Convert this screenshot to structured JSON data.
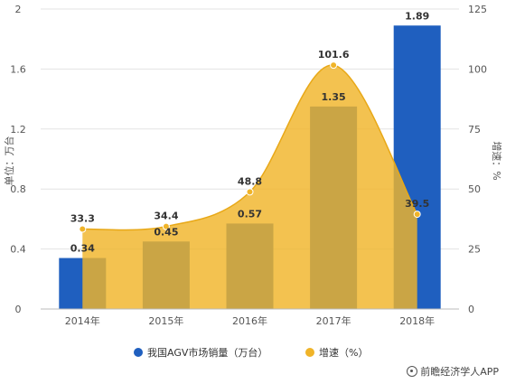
{
  "chart_data": {
    "type": "bar",
    "categories": [
      "2014年",
      "2015年",
      "2016年",
      "2017年",
      "2018年"
    ],
    "series": [
      {
        "name": "我国AGV市场销量（万台）",
        "type": "bar",
        "axis": "left",
        "color": "#1f5fbf",
        "values": [
          0.34,
          0.45,
          0.57,
          1.35,
          1.89
        ]
      },
      {
        "name": "增速（%）",
        "type": "area",
        "axis": "right",
        "color": "#f0b429",
        "values": [
          33.3,
          34.4,
          48.8,
          101.6,
          39.5
        ]
      }
    ],
    "ylabel": "单位：万台",
    "y2label": "增速：%",
    "ylim": [
      0,
      2
    ],
    "y2lim": [
      0,
      125
    ],
    "yticks": [
      "0",
      "0.4",
      "0.8",
      "1.2",
      "1.6",
      "2"
    ],
    "y2ticks": [
      "0",
      "25",
      "50",
      "75",
      "100",
      "125"
    ],
    "bar_labels": [
      "0.34",
      "0.45",
      "0.57",
      "1.35",
      "1.89"
    ],
    "rate_labels": [
      "33.3",
      "34.4",
      "48.8",
      "101.6",
      "39.5"
    ],
    "legend_position": "bottom",
    "grid": true
  },
  "source": "前瞻经济学人APP"
}
